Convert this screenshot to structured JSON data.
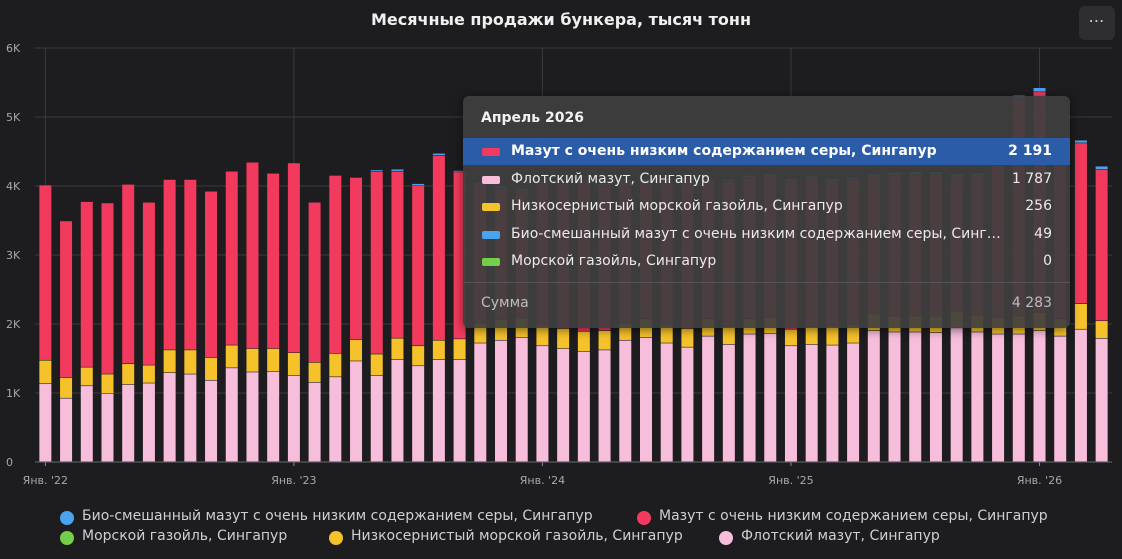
{
  "title": "Месячные продажи бункера, тысяч тонн",
  "menu_label": "⋯",
  "colors": {
    "vlsfo": "#f23a5e",
    "flot": "#f7bedc",
    "lsmgo": "#f6c22b",
    "bio": "#4aa3f0",
    "mgo": "#73cf4a"
  },
  "chart_data": {
    "type": "bar",
    "stacked": true,
    "title": "Месячные продажи бункера, тысяч тонн",
    "ylim": [
      0,
      6000
    ],
    "yticks": [
      0,
      1000,
      2000,
      3000,
      4000,
      5000,
      6000
    ],
    "ytick_labels": [
      "0",
      "1K",
      "2K",
      "3K",
      "4K",
      "5K",
      "6K"
    ],
    "xtick_labels": [
      "Янв. '22",
      "Янв. '23",
      "Янв. '24",
      "Янв. '25",
      "Янв. '26"
    ],
    "grid": true,
    "legend_position": "bottom",
    "categories": [
      "2022-01",
      "2022-02",
      "2022-03",
      "2022-04",
      "2022-05",
      "2022-06",
      "2022-07",
      "2022-08",
      "2022-09",
      "2022-10",
      "2022-11",
      "2022-12",
      "2023-01",
      "2023-02",
      "2023-03",
      "2023-04",
      "2023-05",
      "2023-06",
      "2023-07",
      "2023-08",
      "2023-09",
      "2023-10",
      "2023-11",
      "2023-12",
      "2024-01",
      "2024-02",
      "2024-03",
      "2024-04",
      "2024-05",
      "2024-06",
      "2024-07",
      "2024-08",
      "2024-09",
      "2024-10",
      "2024-11",
      "2024-12",
      "2025-01",
      "2025-02",
      "2025-03",
      "2025-04",
      "2025-05",
      "2025-06",
      "2025-07",
      "2025-08",
      "2025-09",
      "2025-10",
      "2025-11",
      "2025-12",
      "2026-01",
      "2026-02",
      "2026-03",
      "2026-04"
    ],
    "series": [
      {
        "key": "flot",
        "name": "Флотский мазут, Сингапур",
        "values": [
          1130,
          920,
          1100,
          990,
          1120,
          1140,
          1290,
          1270,
          1180,
          1360,
          1300,
          1310,
          1250,
          1150,
          1230,
          1460,
          1250,
          1480,
          1390,
          1480,
          1480,
          1720,
          1760,
          1800,
          1680,
          1640,
          1600,
          1620,
          1760,
          1800,
          1720,
          1660,
          1820,
          1700,
          1850,
          1860,
          1680,
          1700,
          1690,
          1720,
          1900,
          1880,
          1880,
          1870,
          1940,
          1880,
          1850,
          1850,
          1900,
          1820,
          1920,
          1787
        ]
      },
      {
        "key": "lsmgo",
        "name": "Низкосернистый морской газойль, Сингапур",
        "values": [
          340,
          300,
          270,
          280,
          300,
          260,
          330,
          350,
          330,
          330,
          340,
          330,
          330,
          290,
          340,
          310,
          310,
          310,
          290,
          280,
          300,
          290,
          300,
          280,
          300,
          290,
          290,
          280,
          250,
          270,
          260,
          270,
          250,
          260,
          220,
          230,
          240,
          260,
          280,
          270,
          240,
          230,
          230,
          240,
          240,
          240,
          240,
          260,
          260,
          250,
          370,
          256
        ]
      },
      {
        "key": "vlsfo",
        "name": "Мазут с очень низким содержанием серы, Сингапур",
        "values": [
          2540,
          2270,
          2400,
          2480,
          2600,
          2360,
          2470,
          2470,
          2410,
          2520,
          2700,
          2540,
          2750,
          2320,
          2580,
          2350,
          2650,
          2420,
          2320,
          2680,
          2420,
          2000,
          1900,
          1850,
          2050,
          2100,
          2150,
          2100,
          2050,
          2000,
          2100,
          2150,
          2000,
          2100,
          2050,
          2050,
          2150,
          2150,
          2100,
          2100,
          2000,
          2050,
          2050,
          2050,
          1950,
          2020,
          2200,
          3150,
          3200,
          2550,
          2330,
          2191
        ]
      },
      {
        "key": "bio",
        "name": "Био-смешанный мазут с очень низким содержанием серы, Сингапур",
        "values": [
          0,
          0,
          0,
          0,
          0,
          0,
          0,
          0,
          0,
          0,
          0,
          0,
          0,
          0,
          0,
          0,
          20,
          30,
          30,
          30,
          20,
          30,
          30,
          30,
          30,
          30,
          30,
          30,
          30,
          30,
          30,
          30,
          30,
          30,
          30,
          30,
          30,
          30,
          30,
          30,
          30,
          30,
          40,
          40,
          40,
          40,
          40,
          50,
          60,
          40,
          40,
          49
        ]
      },
      {
        "key": "mgo",
        "name": "Морской газойль, Сингапур",
        "values": [
          0,
          0,
          0,
          0,
          0,
          0,
          0,
          0,
          0,
          0,
          0,
          0,
          0,
          0,
          0,
          0,
          0,
          0,
          0,
          0,
          0,
          0,
          0,
          0,
          0,
          0,
          0,
          0,
          0,
          0,
          0,
          0,
          0,
          0,
          0,
          0,
          0,
          0,
          0,
          0,
          0,
          0,
          0,
          0,
          0,
          0,
          0,
          0,
          0,
          0,
          0,
          0
        ]
      }
    ]
  },
  "tooltip": {
    "header": "Апрель 2026",
    "rows": [
      {
        "key": "vlsfo",
        "name": "Мазут с очень низким содержанием серы, Сингапур",
        "value": "2 191",
        "highlighted": true
      },
      {
        "key": "flot",
        "name": "Флотский мазут, Сингапур",
        "value": "1 787",
        "highlighted": false
      },
      {
        "key": "lsmgo",
        "name": "Низкосернистый морской газойль, Сингапур",
        "value": "256",
        "highlighted": false
      },
      {
        "key": "bio",
        "name": "Био-смешанный мазут с очень низким содержанием серы, Сингапур",
        "value": "49",
        "highlighted": false
      },
      {
        "key": "mgo",
        "name": "Морской газойль, Сингапур",
        "value": "0",
        "highlighted": false
      }
    ],
    "sum_label": "Сумма",
    "sum_value": "4 283"
  },
  "legend": [
    {
      "key": "bio",
      "label": "Био-смешанный мазут с очень низким содержанием серы, Сингапур"
    },
    {
      "key": "vlsfo",
      "label": "Мазут с очень низким содержанием серы, Сингапур"
    },
    {
      "key": "mgo",
      "label": "Морской газойль, Сингапур"
    },
    {
      "key": "lsmgo",
      "label": "Низкосернистый морской газойль, Сингапур"
    },
    {
      "key": "flot",
      "label": "Флотский мазут, Сингапур"
    }
  ]
}
